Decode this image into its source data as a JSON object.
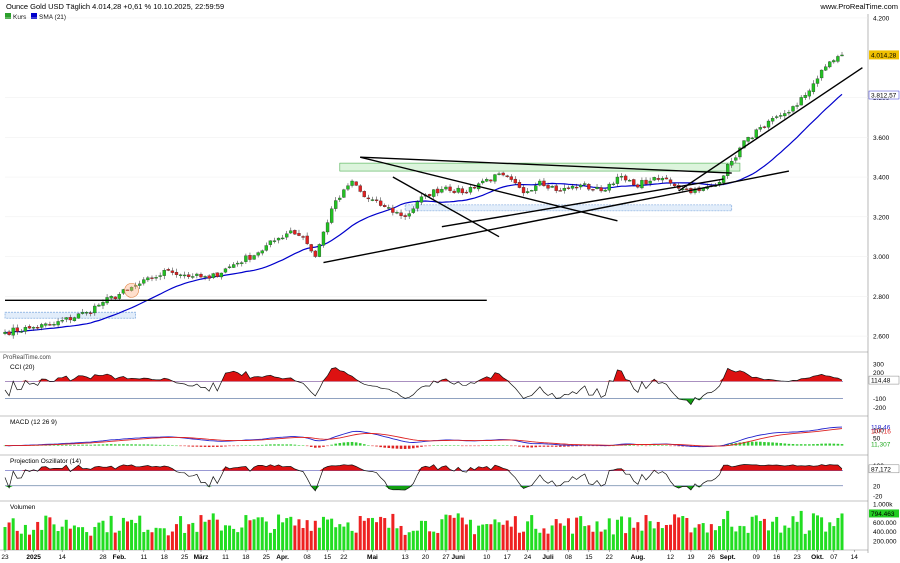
{
  "header": {
    "title": "Ounce Gold USD Täglich 4.014,28 +0,61 % 10.10.2025, 22:59:59",
    "brand": "www.ProRealTime.com",
    "watermark": "ProRealTime.com"
  },
  "legend": {
    "price_label": "Kurs",
    "sma_label": "SMA (21)",
    "price_color": "#2ca02c",
    "sma_color": "#0000cc"
  },
  "price_panel": {
    "ylim": [
      2520,
      4220
    ],
    "yticks": [
      "4.200",
      "3.800",
      "3.600",
      "3.400",
      "3.200",
      "3.000",
      "2.800",
      "2.600"
    ],
    "yticks_values": [
      4200,
      3800,
      3600,
      3400,
      3200,
      3000,
      2800,
      2600
    ],
    "last_price_label": "4.014,28",
    "last_price": 4014.28,
    "sma_label_value": "3.812,57",
    "sma_value": 3812.57,
    "up_color": "#22c022",
    "down_color": "#e02020"
  },
  "cci_panel": {
    "title": "CCI (20)",
    "ylim": [
      -300,
      300
    ],
    "yticks": [
      "300",
      "200",
      "100",
      "-100",
      "-200"
    ],
    "yticks_values": [
      300,
      200,
      100,
      -100,
      -200
    ],
    "last_label": "114,48",
    "last_value": 114.48
  },
  "macd_panel": {
    "title": "MACD (12 26 9)",
    "ylim": [
      -60,
      170
    ],
    "yticks": [
      "100",
      "50"
    ],
    "yticks_values": [
      100,
      50
    ],
    "labels": [
      "118,46",
      "107,16",
      "11,307"
    ],
    "values": [
      118.46,
      107.16,
      11.307
    ]
  },
  "proj_panel": {
    "title": "Projection Oszillator (14)",
    "ylim": [
      -40,
      130
    ],
    "yticks": [
      "100",
      "80",
      "20",
      "-20"
    ],
    "yticks_values": [
      100,
      80,
      20,
      -20
    ],
    "last_label": "87,172",
    "last_value": 87.172
  },
  "volume_panel": {
    "title": "Volumen",
    "ylim": [
      0,
      1000000
    ],
    "yticks": [
      "1.000k",
      "600.000",
      "400.000",
      "200.000"
    ],
    "yticks_values": [
      1000000,
      600000,
      400000,
      200000
    ],
    "last_label": "794.463",
    "last_value": 794463
  },
  "x_axis": {
    "labels": [
      {
        "text": "23",
        "bold": false,
        "index": 0
      },
      {
        "text": "2025",
        "bold": true,
        "index": 7
      },
      {
        "text": "14",
        "bold": false,
        "index": 14
      },
      {
        "text": "28",
        "bold": false,
        "index": 24
      },
      {
        "text": "Feb.",
        "bold": true,
        "index": 28
      },
      {
        "text": "11",
        "bold": false,
        "index": 34
      },
      {
        "text": "18",
        "bold": false,
        "index": 39
      },
      {
        "text": "25",
        "bold": false,
        "index": 44
      },
      {
        "text": "März",
        "bold": true,
        "index": 48
      },
      {
        "text": "11",
        "bold": false,
        "index": 54
      },
      {
        "text": "18",
        "bold": false,
        "index": 59
      },
      {
        "text": "25",
        "bold": false,
        "index": 64
      },
      {
        "text": "Apr.",
        "bold": true,
        "index": 68
      },
      {
        "text": "08",
        "bold": false,
        "index": 74
      },
      {
        "text": "15",
        "bold": false,
        "index": 79
      },
      {
        "text": "22",
        "bold": false,
        "index": 83
      },
      {
        "text": "Mai",
        "bold": true,
        "index": 90
      },
      {
        "text": "13",
        "bold": false,
        "index": 98
      },
      {
        "text": "20",
        "bold": false,
        "index": 103
      },
      {
        "text": "27",
        "bold": false,
        "index": 108
      },
      {
        "text": "Juni",
        "bold": true,
        "index": 111
      },
      {
        "text": "10",
        "bold": false,
        "index": 118
      },
      {
        "text": "17",
        "bold": false,
        "index": 123
      },
      {
        "text": "24",
        "bold": false,
        "index": 128
      },
      {
        "text": "Juli",
        "bold": true,
        "index": 133
      },
      {
        "text": "08",
        "bold": false,
        "index": 138
      },
      {
        "text": "15",
        "bold": false,
        "index": 143
      },
      {
        "text": "22",
        "bold": false,
        "index": 148
      },
      {
        "text": "Aug.",
        "bold": true,
        "index": 155
      },
      {
        "text": "12",
        "bold": false,
        "index": 163
      },
      {
        "text": "19",
        "bold": false,
        "index": 168
      },
      {
        "text": "26",
        "bold": false,
        "index": 173
      },
      {
        "text": "Sept.",
        "bold": true,
        "index": 177
      },
      {
        "text": "09",
        "bold": false,
        "index": 184
      },
      {
        "text": "16",
        "bold": false,
        "index": 189
      },
      {
        "text": "23",
        "bold": false,
        "index": 194
      },
      {
        "text": "Okt.",
        "bold": true,
        "index": 199
      },
      {
        "text": "07",
        "bold": false,
        "index": 203
      },
      {
        "text": "14",
        "bold": false,
        "index": 208
      }
    ]
  },
  "chart_data": {
    "type": "candlestick",
    "title": "Ounce Gold USD Täglich",
    "bar_count": 206,
    "anchors": [
      [
        0,
        2620
      ],
      [
        6,
        2640
      ],
      [
        12,
        2660
      ],
      [
        20,
        2720
      ],
      [
        24,
        2770
      ],
      [
        30,
        2830
      ],
      [
        36,
        2890
      ],
      [
        40,
        2930
      ],
      [
        46,
        2900
      ],
      [
        50,
        2890
      ],
      [
        56,
        2960
      ],
      [
        62,
        3020
      ],
      [
        66,
        3080
      ],
      [
        70,
        3130
      ],
      [
        73,
        3100
      ],
      [
        76,
        3000
      ],
      [
        80,
        3240
      ],
      [
        85,
        3380
      ],
      [
        88,
        3300
      ],
      [
        93,
        3250
      ],
      [
        98,
        3200
      ],
      [
        103,
        3310
      ],
      [
        108,
        3350
      ],
      [
        112,
        3320
      ],
      [
        117,
        3380
      ],
      [
        122,
        3410
      ],
      [
        127,
        3320
      ],
      [
        131,
        3380
      ],
      [
        136,
        3330
      ],
      [
        141,
        3360
      ],
      [
        146,
        3330
      ],
      [
        150,
        3400
      ],
      [
        154,
        3360
      ],
      [
        158,
        3380
      ],
      [
        162,
        3390
      ],
      [
        166,
        3340
      ],
      [
        170,
        3330
      ],
      [
        174,
        3360
      ],
      [
        178,
        3480
      ],
      [
        182,
        3600
      ],
      [
        186,
        3650
      ],
      [
        190,
        3710
      ],
      [
        194,
        3760
      ],
      [
        198,
        3870
      ],
      [
        202,
        3980
      ],
      [
        205,
        4014
      ]
    ],
    "sma_period": 21,
    "trendlines": [
      {
        "from": [
          0,
          2780
        ],
        "to": [
          118,
          2780
        ]
      },
      {
        "from": [
          87,
          3500
        ],
        "to": [
          178,
          3420
        ]
      },
      {
        "from": [
          87,
          3500
        ],
        "to": [
          150,
          3180
        ]
      },
      {
        "from": [
          95,
          3400
        ],
        "to": [
          121,
          3100
        ]
      },
      {
        "from": [
          78,
          2970
        ],
        "to": [
          192,
          3430
        ]
      },
      {
        "from": [
          107,
          3150
        ],
        "to": [
          176,
          3390
        ]
      },
      {
        "from": [
          165,
          3330
        ],
        "to": [
          210,
          3950
        ]
      }
    ],
    "zones": [
      {
        "from": [
          82,
          3470
        ],
        "to": [
          180,
          3430
        ]
      },
      {
        "from": [
          98,
          3260
        ],
        "to": [
          178,
          3240
        ]
      },
      {
        "from": [
          0,
          2720
        ],
        "to": [
          32,
          2700
        ]
      }
    ],
    "circle_marker": [
      31,
      2830
    ]
  }
}
